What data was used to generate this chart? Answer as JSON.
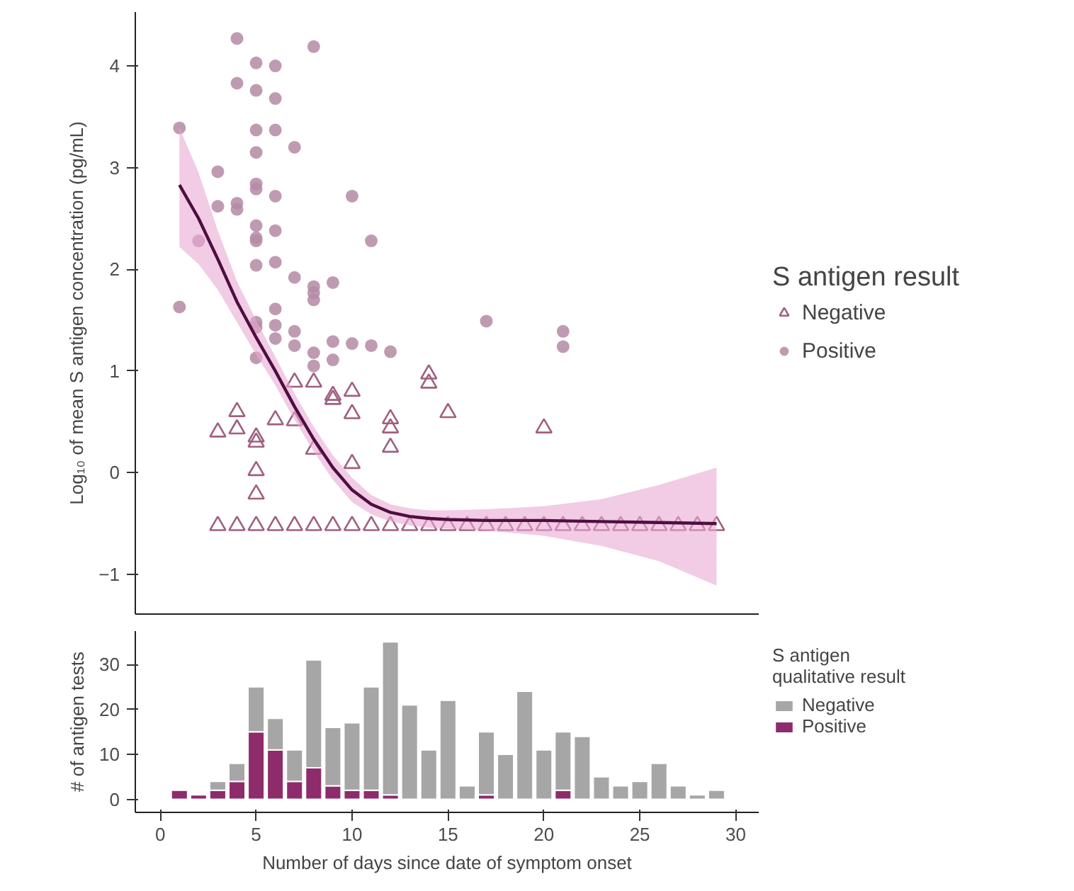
{
  "chart_data": [
    {
      "type": "scatter",
      "ylabel": "Log₁₀ of mean S antigen concentration (pg/mL)",
      "legend_title": "S antigen result",
      "legend": "right",
      "grid": false,
      "tick_labels": "y",
      "xlim": [
        -1.3,
        31.2
      ],
      "ylim": [
        -1.39,
        4.53
      ],
      "yticks": [
        -1,
        0,
        1,
        2,
        3,
        4
      ],
      "series": [
        {
          "name": "Negative",
          "marker": "triangle",
          "color": "#a0607f",
          "x": [
            3,
            3,
            4,
            4,
            4,
            5,
            5,
            5,
            5,
            5,
            6,
            6,
            7,
            7,
            7,
            8,
            8,
            8,
            9,
            9,
            9,
            10,
            10,
            10,
            10,
            11,
            12,
            12,
            12,
            12,
            13,
            14,
            14,
            14,
            15,
            15,
            16,
            17,
            18,
            19,
            20,
            20,
            21,
            22,
            23,
            24,
            25,
            26,
            27,
            28,
            29
          ],
          "values": [
            0.4,
            -0.52,
            0.6,
            0.43,
            -0.52,
            0.35,
            0.3,
            0.02,
            -0.21,
            -0.52,
            0.52,
            -0.52,
            0.89,
            0.51,
            -0.52,
            0.89,
            0.23,
            -0.52,
            0.76,
            0.72,
            -0.52,
            0.8,
            0.58,
            0.09,
            -0.52,
            -0.52,
            0.53,
            0.44,
            0.25,
            -0.52,
            -0.52,
            0.97,
            0.88,
            -0.52,
            0.59,
            -0.52,
            -0.52,
            -0.52,
            -0.52,
            -0.52,
            0.44,
            -0.52,
            -0.52,
            -0.52,
            -0.52,
            -0.52,
            -0.52,
            -0.52,
            -0.52,
            -0.52,
            -0.52
          ]
        },
        {
          "name": "Positive",
          "marker": "circle",
          "color": "#b48aa5",
          "x": [
            1,
            1,
            2,
            3,
            3,
            4,
            4,
            4,
            4,
            5,
            5,
            5,
            5,
            5,
            5,
            5,
            5,
            5,
            5,
            5,
            5,
            5,
            6,
            6,
            6,
            6,
            6,
            6,
            6,
            6,
            6,
            7,
            7,
            7,
            7,
            8,
            8,
            8,
            8,
            8,
            8,
            9,
            9,
            9,
            10,
            10,
            11,
            11,
            12,
            17,
            21,
            21
          ],
          "values": [
            3.39,
            1.63,
            2.28,
            2.96,
            2.62,
            4.27,
            3.83,
            2.65,
            2.59,
            4.03,
            3.76,
            3.37,
            3.15,
            2.84,
            2.79,
            2.43,
            2.31,
            2.28,
            2.04,
            1.48,
            1.43,
            1.13,
            4.0,
            3.68,
            3.37,
            2.72,
            2.38,
            2.07,
            1.61,
            1.45,
            1.32,
            3.2,
            1.92,
            1.39,
            1.25,
            4.19,
            1.83,
            1.77,
            1.7,
            1.18,
            1.05,
            1.87,
            1.29,
            1.11,
            2.72,
            1.27,
            2.28,
            1.25,
            1.19,
            1.49,
            1.39,
            1.24
          ]
        },
        {
          "type": "line",
          "color": "#4d0f3f",
          "x": [
            1,
            2,
            3,
            4,
            5,
            6,
            7,
            8,
            9,
            10,
            11,
            12,
            13,
            14,
            15,
            17,
            20,
            23,
            26,
            29
          ],
          "values": [
            2.83,
            2.5,
            2.1,
            1.68,
            1.33,
            1.0,
            0.65,
            0.33,
            0.05,
            -0.17,
            -0.31,
            -0.39,
            -0.43,
            -0.45,
            -0.46,
            -0.47,
            -0.47,
            -0.48,
            -0.49,
            -0.5
          ],
          "upper": [
            3.39,
            2.95,
            2.38,
            1.88,
            1.5,
            1.14,
            0.78,
            0.45,
            0.17,
            -0.05,
            -0.22,
            -0.31,
            -0.35,
            -0.37,
            -0.37,
            -0.36,
            -0.33,
            -0.26,
            -0.12,
            0.05
          ],
          "lower": [
            2.22,
            2.05,
            1.8,
            1.48,
            1.16,
            0.86,
            0.52,
            0.21,
            -0.07,
            -0.29,
            -0.41,
            -0.48,
            -0.52,
            -0.54,
            -0.55,
            -0.57,
            -0.62,
            -0.72,
            -0.87,
            -1.11
          ]
        }
      ]
    },
    {
      "type": "bar",
      "stacked": true,
      "xlabel": "Number of days since date of symptom onset",
      "ylabel": "# of antigen tests",
      "legend_title": "S antigen\nqualitative result",
      "legend": "right",
      "grid": false,
      "xlim": [
        -1.3,
        31.2
      ],
      "xticks": [
        0,
        5,
        10,
        15,
        20,
        25,
        30
      ],
      "ylim": [
        -2.9,
        37.4
      ],
      "yticks": [
        0,
        10,
        20,
        30
      ],
      "x": [
        1,
        2,
        3,
        4,
        5,
        6,
        7,
        8,
        9,
        10,
        11,
        12,
        13,
        14,
        15,
        16,
        17,
        18,
        19,
        20,
        21,
        22,
        23,
        24,
        25,
        26,
        27,
        28,
        29
      ],
      "series": [
        {
          "name": "Positive",
          "color": "#8e2b6b",
          "values": [
            2,
            1,
            2,
            4,
            15,
            11,
            4,
            7,
            3,
            2,
            2,
            1,
            0,
            0,
            0,
            0,
            1,
            0,
            0,
            0,
            2,
            0,
            0,
            0,
            0,
            0,
            0,
            0,
            0
          ]
        },
        {
          "name": "Negative",
          "color": "#a6a6a6",
          "values": [
            0,
            0,
            2,
            4,
            10,
            7,
            7,
            24,
            13,
            15,
            23,
            34,
            21,
            11,
            22,
            3,
            14,
            10,
            24,
            11,
            13,
            14,
            5,
            3,
            4,
            8,
            3,
            1,
            2
          ]
        }
      ]
    }
  ]
}
